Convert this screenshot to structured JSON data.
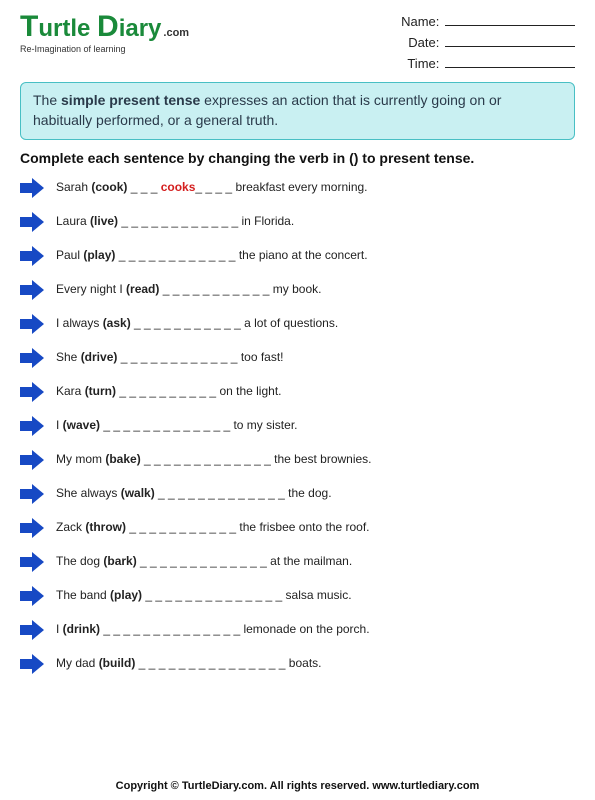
{
  "logo": {
    "text": "Turtle Diary",
    "dotcom": ".com",
    "tagline": "Re-Imagination of learning",
    "color_primary": "#1a8a3a"
  },
  "meta": {
    "name_label": "Name:",
    "date_label": "Date:",
    "time_label": "Time:"
  },
  "definition": {
    "prefix": "The ",
    "term": "simple present tense",
    "suffix": " expresses an action that is currently going on or habitually performed, or a general truth.",
    "bg_color": "#c9f0f2",
    "border_color": "#48bfc4"
  },
  "instruction": "Complete each sentence by changing the verb in () to present tense.",
  "arrow_color": "#1749c4",
  "sample_answer": {
    "text": "cooks",
    "color": "#d41f1f"
  },
  "questions": [
    {
      "before": "Sarah ",
      "verb": "(cook)",
      "blank": " _ _ _ ",
      "sample": "cooks",
      "blank2": "_ _ _ _ ",
      "after": "breakfast every morning."
    },
    {
      "before": "Laura ",
      "verb": "(live)",
      "blank": " _ _ _ _ _ _ _ _ _ _ _ _ ",
      "after": "in Florida."
    },
    {
      "before": "Paul ",
      "verb": "(play)",
      "blank": " _ _ _ _ _ _ _ _ _ _ _ _ ",
      "after": "the piano at the concert."
    },
    {
      "before": "Every night I ",
      "verb": "(read)",
      "blank": " _ _ _ _ _ _ _ _ _ _ _ ",
      "after": "my book."
    },
    {
      "before": "I always ",
      "verb": "(ask)",
      "blank": " _ _ _ _ _ _ _ _ _ _ _ ",
      "after": "a lot of questions."
    },
    {
      "before": "She ",
      "verb": "(drive)",
      "blank": " _ _ _ _ _ _ _ _ _ _ _ _  ",
      "after": "too fast!"
    },
    {
      "before": "Kara ",
      "verb": "(turn)",
      "blank": " _ _ _ _ _ _ _ _ _ _ ",
      "after": "on the light."
    },
    {
      "before": "I ",
      "verb": "(wave)",
      "blank": " _ _ _ _ _ _ _ _ _ _ _ _ _  ",
      "after": "to my sister."
    },
    {
      "before": "My mom ",
      "verb": "(bake)",
      "blank": " _ _ _ _ _ _ _ _ _ _ _ _ _ ",
      "after": "the best brownies."
    },
    {
      "before": "She always ",
      "verb": "(walk)",
      "blank": " _ _ _ _ _ _ _ _ _ _ _ _ _ ",
      "after": "the dog."
    },
    {
      "before": "Zack ",
      "verb": "(throw)",
      "blank": " _ _ _ _ _ _ _ _ _ _ _ ",
      "after": "the frisbee onto the roof."
    },
    {
      "before": "The dog ",
      "verb": "(bark)",
      "blank": " _ _ _ _ _ _ _ _ _ _ _ _ _  ",
      "after": "at the mailman."
    },
    {
      "before": "The band ",
      "verb": "(play)",
      "blank": " _ _ _ _ _ _ _ _ _ _ _ _ _ _ ",
      "after": "salsa music."
    },
    {
      "before": "I ",
      "verb": "(drink)",
      "blank": " _ _ _ _ _ _ _ _ _ _ _ _ _ _ ",
      "after": "lemonade on the porch."
    },
    {
      "before": "My dad ",
      "verb": "(build)",
      "blank": " _ _ _ _ _ _ _ _ _ _ _ _ _ _ _ ",
      "after": "boats."
    }
  ],
  "footer": "Copyright © TurtleDiary.com. All rights reserved.  www.turtlediary.com"
}
